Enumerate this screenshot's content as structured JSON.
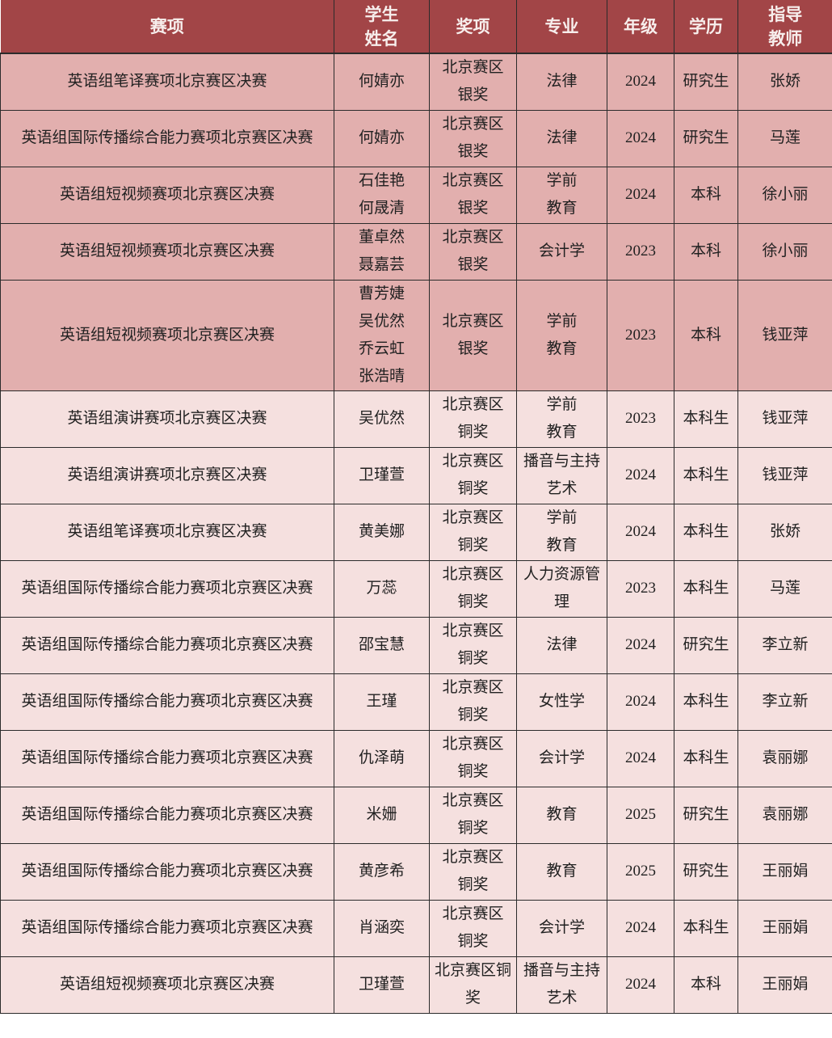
{
  "colors": {
    "header_bg": "#a24547",
    "header_text": "#f7eeec",
    "row_silver_bg": "#e2afae",
    "row_bronze_bg": "#f5e0df",
    "border": "#2b2b2b",
    "cell_text": "#212121"
  },
  "table": {
    "columns": [
      {
        "id": "event",
        "label": "赛项"
      },
      {
        "id": "students",
        "label": "学生\n姓名"
      },
      {
        "id": "award",
        "label": "奖项"
      },
      {
        "id": "major",
        "label": "专业"
      },
      {
        "id": "grade",
        "label": "年级"
      },
      {
        "id": "degree",
        "label": "学历"
      },
      {
        "id": "teacher",
        "label": "指导\n教师"
      }
    ],
    "rows": [
      {
        "event": "英语组笔译赛项北京赛区决赛",
        "students": "何婧亦",
        "award": "北京赛区\n银奖",
        "major": "法律",
        "grade": "2024",
        "degree": "研究生",
        "teacher": "张娇",
        "tone": "silver",
        "award_small": false
      },
      {
        "event": "英语组国际传播综合能力赛项北京赛区决赛",
        "students": "何婧亦",
        "award": "北京赛区\n银奖",
        "major": "法律",
        "grade": "2024",
        "degree": "研究生",
        "teacher": "马莲",
        "tone": "silver",
        "award_small": false
      },
      {
        "event": "英语组短视频赛项北京赛区决赛",
        "students": "石佳艳\n何晟清",
        "award": "北京赛区\n银奖",
        "major": "学前\n教育",
        "grade": "2024",
        "degree": "本科",
        "teacher": "徐小丽",
        "tone": "silver",
        "award_small": false
      },
      {
        "event": "英语组短视频赛项北京赛区决赛",
        "students": "董卓然\n聂嘉芸",
        "award": "北京赛区\n银奖",
        "major": "会计学",
        "grade": "2023",
        "degree": "本科",
        "teacher": "徐小丽",
        "tone": "silver",
        "award_small": false
      },
      {
        "event": "英语组短视频赛项北京赛区决赛",
        "students": "曹芳婕\n吴优然\n乔云虹\n张浩晴",
        "award": "北京赛区\n银奖",
        "major": "学前\n教育",
        "grade": "2023",
        "degree": "本科",
        "teacher": "钱亚萍",
        "tone": "silver",
        "award_small": false
      },
      {
        "event": "英语组演讲赛项北京赛区决赛",
        "students": "吴优然",
        "award": "北京赛区\n铜奖",
        "major": "学前\n教育",
        "grade": "2023",
        "degree": "本科生",
        "teacher": "钱亚萍",
        "tone": "bronze",
        "award_small": false
      },
      {
        "event": "英语组演讲赛项北京赛区决赛",
        "students": "卫瑾萱",
        "award": "北京赛区\n铜奖",
        "major": "播音与主持\n艺术",
        "grade": "2024",
        "degree": "本科生",
        "teacher": "钱亚萍",
        "tone": "bronze",
        "award_small": false
      },
      {
        "event": "英语组笔译赛项北京赛区决赛",
        "students": "黄美娜",
        "award": "北京赛区\n铜奖",
        "major": "学前\n教育",
        "grade": "2024",
        "degree": "本科生",
        "teacher": "张娇",
        "tone": "bronze",
        "award_small": false
      },
      {
        "event": "英语组国际传播综合能力赛项北京赛区决赛",
        "students": "万蕊",
        "award": "北京赛区\n铜奖",
        "major": "人力资源管\n理",
        "grade": "2023",
        "degree": "本科生",
        "teacher": "马莲",
        "tone": "bronze",
        "award_small": false
      },
      {
        "event": "英语组国际传播综合能力赛项北京赛区决赛",
        "students": "邵宝慧",
        "award": "北京赛区\n铜奖",
        "major": "法律",
        "grade": "2024",
        "degree": "研究生",
        "teacher": "李立新",
        "tone": "bronze",
        "award_small": false
      },
      {
        "event": "英语组国际传播综合能力赛项北京赛区决赛",
        "students": "王瑾",
        "award": "北京赛区\n铜奖",
        "major": "女性学",
        "grade": "2024",
        "degree": "本科生",
        "teacher": "李立新",
        "tone": "bronze",
        "award_small": false
      },
      {
        "event": "英语组国际传播综合能力赛项北京赛区决赛",
        "students": "仇泽萌",
        "award": "北京赛区\n铜奖",
        "major": "会计学",
        "grade": "2024",
        "degree": "本科生",
        "teacher": "袁丽娜",
        "tone": "bronze",
        "award_small": false
      },
      {
        "event": "英语组国际传播综合能力赛项北京赛区决赛",
        "students": "米姗",
        "award": "北京赛区\n铜奖",
        "major": "教育",
        "grade": "2025",
        "degree": "研究生",
        "teacher": "袁丽娜",
        "tone": "bronze",
        "award_small": false
      },
      {
        "event": "英语组国际传播综合能力赛项北京赛区决赛",
        "students": "黄彦希",
        "award": "北京赛区\n铜奖",
        "major": "教育",
        "grade": "2025",
        "degree": "研究生",
        "teacher": "王丽娟",
        "tone": "bronze",
        "award_small": false
      },
      {
        "event": "英语组国际传播综合能力赛项北京赛区决赛",
        "students": "肖涵奕",
        "award": "北京赛区\n铜奖",
        "major": "会计学",
        "grade": "2024",
        "degree": "本科生",
        "teacher": "王丽娟",
        "tone": "bronze",
        "award_small": false
      },
      {
        "event": "英语组短视频赛项北京赛区决赛",
        "students": "卫瑾萱",
        "award": "北京赛区铜\n奖",
        "major": "播音与主持\n艺术",
        "grade": "2024",
        "degree": "本科",
        "teacher": "王丽娟",
        "tone": "bronze",
        "award_small": true
      }
    ]
  }
}
